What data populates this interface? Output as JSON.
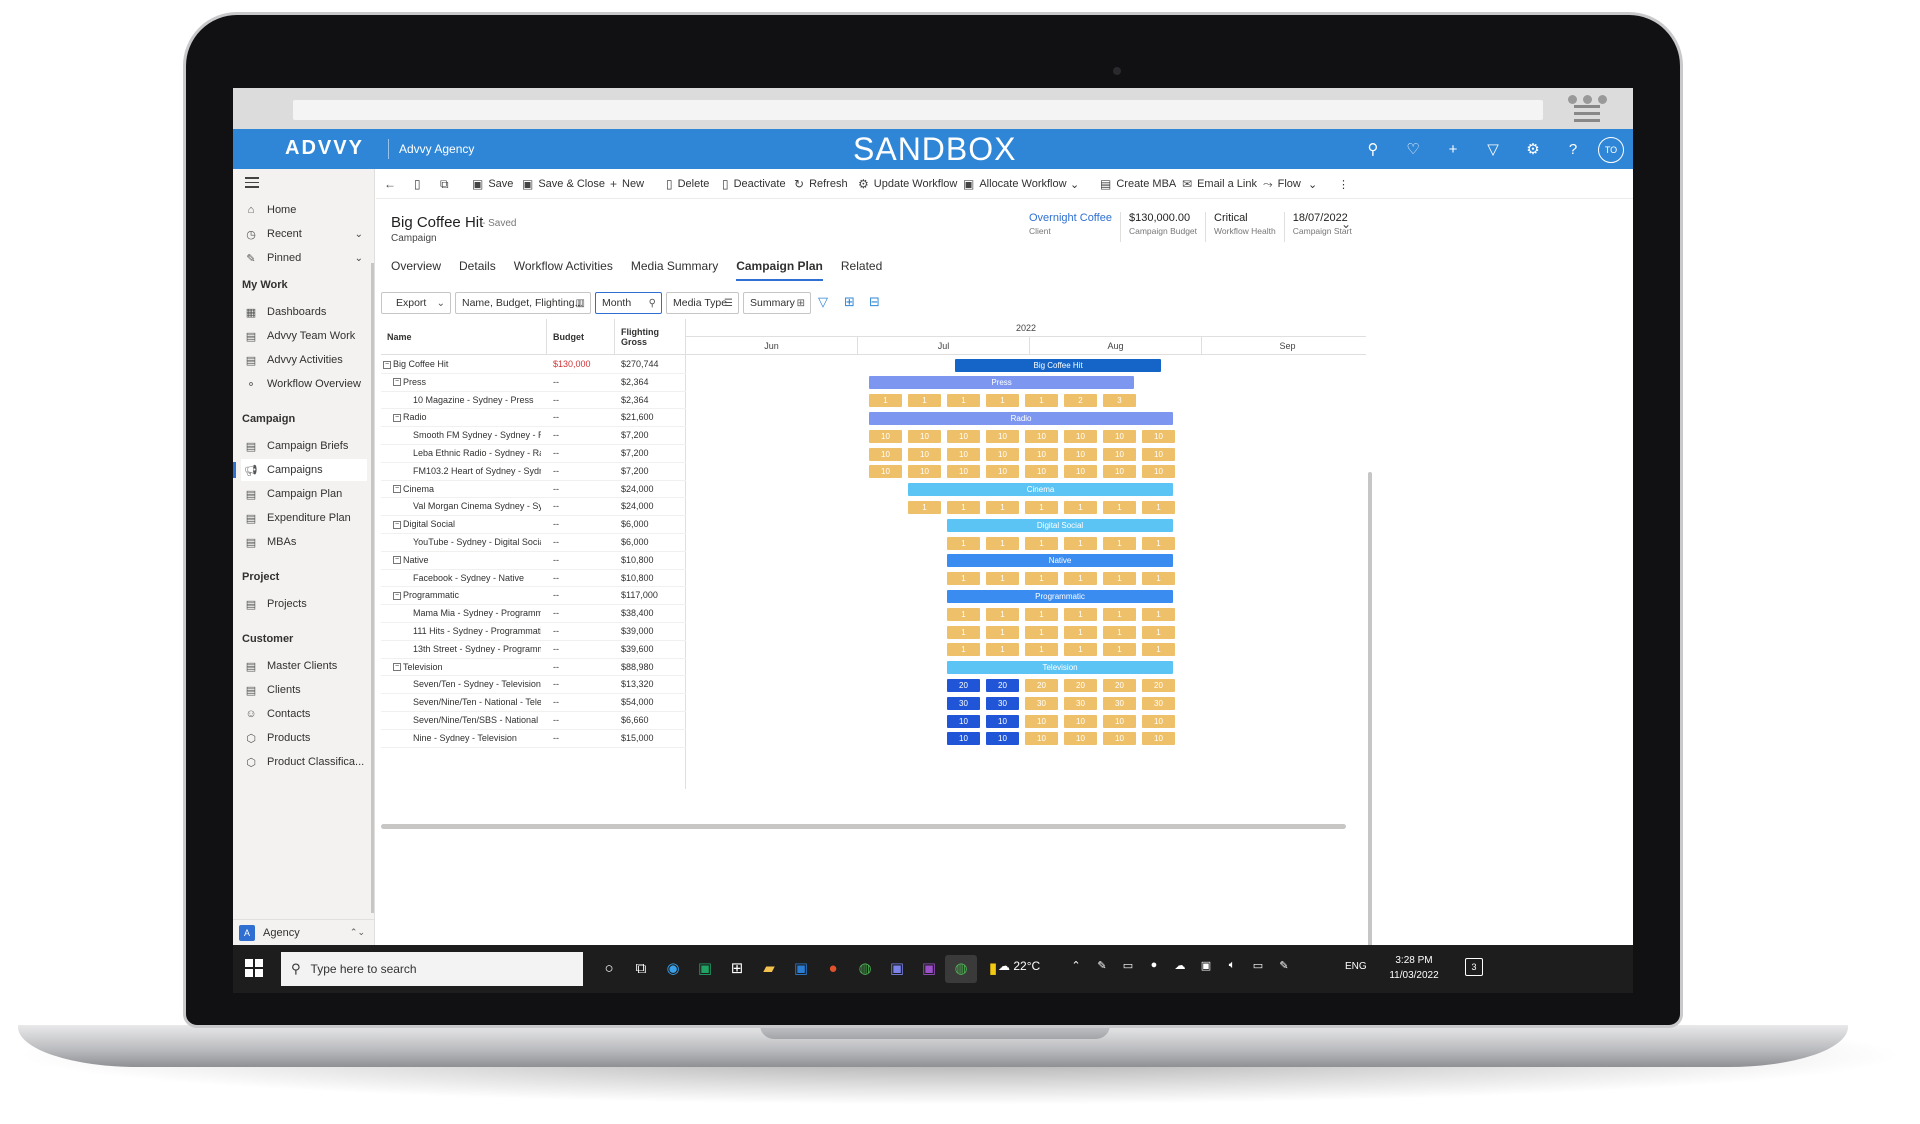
{
  "app": {
    "logo": "ADVVY",
    "org": "Advvy Agency",
    "environment": "SANDBOX",
    "avatar_initials": "TO",
    "top_icons": [
      "search-icon",
      "lightbulb-icon",
      "plus-icon",
      "filter-icon",
      "gear-icon",
      "help-icon"
    ]
  },
  "sidebar": {
    "items": [
      {
        "label": "Home",
        "icon": "⌂"
      },
      {
        "label": "Recent",
        "icon": "◷"
      },
      {
        "label": "Pinned",
        "icon": "✎"
      }
    ],
    "groups": [
      {
        "title": "My Work",
        "items": [
          "Dashboards",
          "Advvy Team Work",
          "Advvy Activities",
          "Workflow Overview"
        ]
      },
      {
        "title": "Campaign",
        "items": [
          "Campaign Briefs",
          "Campaigns",
          "Campaign Plan",
          "Expenditure Plan",
          "MBAs"
        ]
      },
      {
        "title": "Project",
        "items": [
          "Projects"
        ]
      },
      {
        "title": "Customer",
        "items": [
          "Master Clients",
          "Clients",
          "Contacts",
          "Products",
          "Product Classifica..."
        ]
      }
    ],
    "active_item": "Campaigns",
    "area": {
      "badge": "A",
      "label": "Agency"
    }
  },
  "commands": [
    "Save",
    "Save & Close",
    "New",
    "Delete",
    "Deactivate",
    "Refresh",
    "Update Workflow",
    "Allocate Workflow",
    "Create MBA",
    "Email a Link",
    "Flow"
  ],
  "record": {
    "title": "Big Coffee Hit",
    "saved": "- Saved",
    "type": "Campaign",
    "fields": [
      {
        "value": "Overnight Coffee",
        "label": "Client",
        "link": true
      },
      {
        "value": "$130,000.00",
        "label": "Campaign Budget",
        "link": false
      },
      {
        "value": "Critical",
        "label": "Workflow Health",
        "link": false
      },
      {
        "value": "18/07/2022",
        "label": "Campaign Start",
        "link": false
      }
    ]
  },
  "tabs": [
    "Overview",
    "Details",
    "Workflow Activities",
    "Media Summary",
    "Campaign Plan",
    "Related"
  ],
  "active_tab": "Campaign Plan",
  "toolbar": {
    "export": "Export",
    "columns": "Name, Budget, Flighting...",
    "period": "Month",
    "group": "Media Type",
    "view": "Summary"
  },
  "grid": {
    "headers": {
      "name": "Name",
      "budget": "Budget",
      "gross": "Flighting Gross"
    },
    "year": "2022",
    "months": [
      "Jun",
      "Jul",
      "Aug",
      "Sep"
    ],
    "rows": [
      {
        "name": "Big Coffee Hit",
        "budget": "$130,000",
        "gross": "$270,744",
        "level": 0,
        "bar": "Big Coffee Hit"
      },
      {
        "name": "Press",
        "budget": "--",
        "gross": "$2,364",
        "level": 1,
        "bar": "Press"
      },
      {
        "name": "10 Magazine - Sydney - Press",
        "budget": "--",
        "gross": "$2,364",
        "level": 2,
        "cells": [
          "1",
          "1",
          "1",
          "1",
          "1",
          "2",
          "3"
        ]
      },
      {
        "name": "Radio",
        "budget": "--",
        "gross": "$21,600",
        "level": 1,
        "bar": "Radio"
      },
      {
        "name": "Smooth FM Sydney - Sydney - Rad",
        "budget": "--",
        "gross": "$7,200",
        "level": 2,
        "cells": [
          "10",
          "10",
          "10",
          "10",
          "10",
          "10",
          "10",
          "10"
        ]
      },
      {
        "name": "Leba Ethnic Radio - Sydney - Radi",
        "budget": "--",
        "gross": "$7,200",
        "level": 2,
        "cells": [
          "10",
          "10",
          "10",
          "10",
          "10",
          "10",
          "10",
          "10"
        ]
      },
      {
        "name": "FM103.2 Heart of Sydney - Sydney",
        "budget": "--",
        "gross": "$7,200",
        "level": 2,
        "cells": [
          "10",
          "10",
          "10",
          "10",
          "10",
          "10",
          "10",
          "10"
        ]
      },
      {
        "name": "Cinema",
        "budget": "--",
        "gross": "$24,000",
        "level": 1,
        "bar": "Cinema"
      },
      {
        "name": "Val Morgan Cinema Sydney - Sydn",
        "budget": "--",
        "gross": "$24,000",
        "level": 2,
        "cells": [
          "1",
          "1",
          "1",
          "1",
          "1",
          "1",
          "1"
        ]
      },
      {
        "name": "Digital Social",
        "budget": "--",
        "gross": "$6,000",
        "level": 1,
        "bar": "Digital Social"
      },
      {
        "name": "YouTube - Sydney - Digital Social",
        "budget": "--",
        "gross": "$6,000",
        "level": 2,
        "cells": [
          "1",
          "1",
          "1",
          "1",
          "1",
          "1"
        ]
      },
      {
        "name": "Native",
        "budget": "--",
        "gross": "$10,800",
        "level": 1,
        "bar": "Native"
      },
      {
        "name": "Facebook - Sydney - Native",
        "budget": "--",
        "gross": "$10,800",
        "level": 2,
        "cells": [
          "1",
          "1",
          "1",
          "1",
          "1",
          "1"
        ]
      },
      {
        "name": "Programmatic",
        "budget": "--",
        "gross": "$117,000",
        "level": 1,
        "bar": "Programmatic"
      },
      {
        "name": "Mama Mia - Sydney - Programmat",
        "budget": "--",
        "gross": "$38,400",
        "level": 2,
        "cells": [
          "1",
          "1",
          "1",
          "1",
          "1",
          "1"
        ]
      },
      {
        "name": "111 Hits - Sydney - Programmatic",
        "budget": "--",
        "gross": "$39,000",
        "level": 2,
        "cells": [
          "1",
          "1",
          "1",
          "1",
          "1",
          "1"
        ]
      },
      {
        "name": "13th Street - Sydney - Programma",
        "budget": "--",
        "gross": "$39,600",
        "level": 2,
        "cells": [
          "1",
          "1",
          "1",
          "1",
          "1",
          "1"
        ]
      },
      {
        "name": "Television",
        "budget": "--",
        "gross": "$88,980",
        "level": 1,
        "bar": "Television"
      },
      {
        "name": "Seven/Ten - Sydney - Television",
        "budget": "--",
        "gross": "$13,320",
        "level": 2,
        "cells": [
          "20",
          "20",
          "20",
          "20",
          "20",
          "20"
        ]
      },
      {
        "name": "Seven/Nine/Ten - National - Televi",
        "budget": "--",
        "gross": "$54,000",
        "level": 2,
        "cells": [
          "30",
          "30",
          "30",
          "30",
          "30",
          "30"
        ]
      },
      {
        "name": "Seven/Nine/Ten/SBS - National - T",
        "budget": "--",
        "gross": "$6,660",
        "level": 2,
        "cells": [
          "10",
          "10",
          "10",
          "10",
          "10",
          "10"
        ]
      },
      {
        "name": "Nine - Sydney - Television",
        "budget": "--",
        "gross": "$15,000",
        "level": 2,
        "cells": [
          "10",
          "10",
          "10",
          "10",
          "10",
          "10"
        ]
      }
    ]
  },
  "taskbar": {
    "search_placeholder": "Type here to search",
    "weather": "22°C",
    "language": "ENG",
    "time": "3:28 PM",
    "date": "11/03/2022",
    "notifications": "3"
  }
}
